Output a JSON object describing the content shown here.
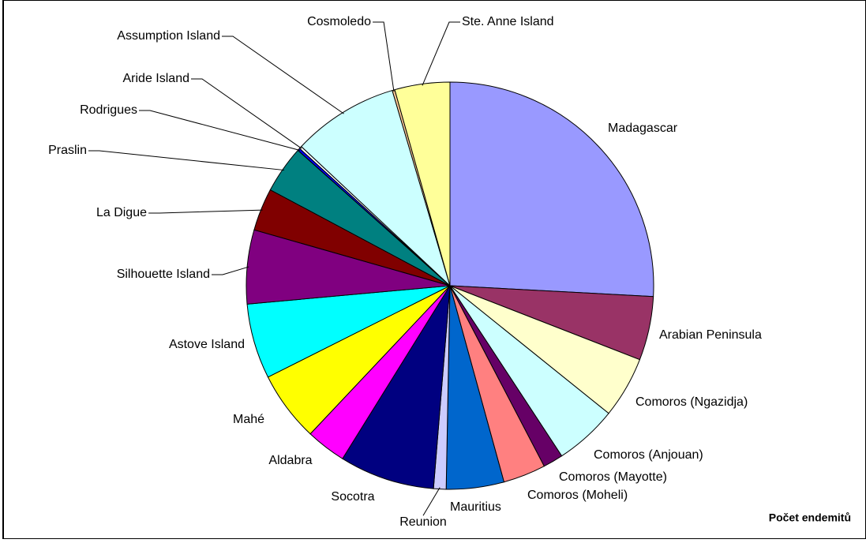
{
  "chart_data": {
    "type": "pie",
    "series_title": "Počet endemitů",
    "categories": [
      "Madagascar",
      "Arabian Peninsula",
      "Comoros (Ngazidja)",
      "Comoros (Anjouan)",
      "Comoros (Mayotte)",
      "Comoros (Moheli)",
      "Mauritius",
      "Reunion",
      "Socotra",
      "Aldabra",
      "Mahé",
      "Astove Island",
      "Silhouette Island",
      "La Digue",
      "Praslin",
      "Rodrigues",
      "Aride Island",
      "Assumption Island",
      "Cosmoledo",
      "Ste. Anne Island"
    ],
    "values": [
      26.0,
      5.1,
      4.9,
      5.0,
      1.6,
      3.4,
      4.6,
      1.0,
      7.6,
      3.2,
      5.6,
      6.0,
      5.9,
      3.4,
      3.8,
      0.2,
      0.2,
      8.5,
      0.2,
      4.4
    ],
    "colors": [
      "#9999ff",
      "#993366",
      "#ffffcc",
      "#ccffff",
      "#660066",
      "#ff8080",
      "#0066cc",
      "#ccccff",
      "#000080",
      "#ff00ff",
      "#ffff00",
      "#00ffff",
      "#800080",
      "#800000",
      "#008080",
      "#0000ff",
      "#ffffff",
      "#ccffff",
      "#ffcc99",
      "#ffff99"
    ]
  }
}
